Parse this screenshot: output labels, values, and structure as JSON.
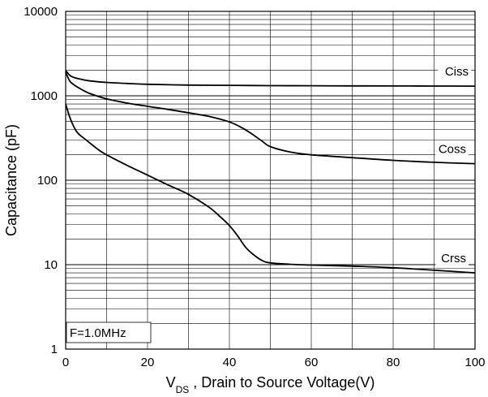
{
  "chart_data": {
    "type": "line",
    "title": "",
    "xlabel": {
      "main": "V",
      "sub": "DS",
      "rest": " , Drain to Source Voltage(V)"
    },
    "ylabel": "Capacitance (pF)",
    "xlim": [
      0,
      100
    ],
    "ylim": [
      1,
      10000
    ],
    "yscale": "log",
    "grid": true,
    "x_ticks": [
      0,
      20,
      40,
      60,
      80,
      100
    ],
    "x_tick_labels": [
      "0",
      "20",
      "40",
      "60",
      "80",
      "100"
    ],
    "y_ticks": [
      1,
      10,
      100,
      1000,
      10000
    ],
    "y_tick_labels": [
      "1",
      "10",
      "100",
      "1000",
      "10000"
    ],
    "annotation": "F=1.0MHz",
    "series": [
      {
        "name": "Ciss",
        "x": [
          0,
          1,
          2,
          4,
          6,
          10,
          15,
          20,
          30,
          40,
          50,
          60,
          70,
          80,
          90,
          100
        ],
        "y": [
          2000,
          1750,
          1650,
          1560,
          1500,
          1440,
          1400,
          1370,
          1340,
          1330,
          1320,
          1315,
          1310,
          1308,
          1305,
          1300
        ]
      },
      {
        "name": "Coss",
        "x": [
          0,
          1,
          2,
          4,
          6,
          10,
          15,
          20,
          25,
          30,
          35,
          40,
          43,
          46,
          48,
          50,
          55,
          60,
          70,
          80,
          90,
          100
        ],
        "y": [
          1900,
          1500,
          1350,
          1180,
          1060,
          920,
          820,
          750,
          690,
          630,
          570,
          490,
          420,
          340,
          290,
          250,
          215,
          200,
          185,
          172,
          163,
          157
        ]
      },
      {
        "name": "Crss",
        "x": [
          0,
          1,
          2,
          3,
          5,
          8,
          10,
          15,
          20,
          25,
          30,
          35,
          38,
          40,
          42,
          44,
          46,
          48,
          50,
          55,
          60,
          70,
          80,
          90,
          100
        ],
        "y": [
          800,
          560,
          430,
          360,
          300,
          230,
          200,
          150,
          115,
          88,
          68,
          48,
          36,
          29,
          22,
          16,
          13,
          11.2,
          10.5,
          10.1,
          9.9,
          9.6,
          9.2,
          8.6,
          8.0
        ]
      }
    ]
  }
}
